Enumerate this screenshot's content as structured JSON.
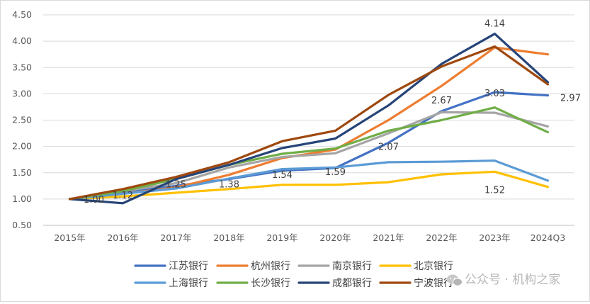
{
  "chart_data": {
    "type": "line",
    "title": "",
    "xlabel": "",
    "ylabel": "",
    "ylim": [
      0.5,
      4.5
    ],
    "yticks": [
      "0.50",
      "1.00",
      "1.50",
      "2.00",
      "2.50",
      "3.00",
      "3.50",
      "4.00",
      "4.50"
    ],
    "categories": [
      "2015年",
      "2016年",
      "2017年",
      "2018年",
      "2019年",
      "2020年",
      "2021年",
      "2022年",
      "2023年",
      "2024Q3"
    ],
    "grid": true,
    "legend": "bottom",
    "series": [
      {
        "name": "江苏银行",
        "color": "#4472C4",
        "values": [
          1.0,
          1.12,
          1.25,
          1.38,
          1.54,
          1.59,
          2.07,
          2.67,
          3.03,
          2.97
        ]
      },
      {
        "name": "杭州银行",
        "color": "#ED7D31",
        "values": [
          1.0,
          1.1,
          1.22,
          1.46,
          1.78,
          1.94,
          2.5,
          3.15,
          3.88,
          3.75
        ]
      },
      {
        "name": "南京银行",
        "color": "#A5A5A5",
        "values": [
          1.0,
          1.15,
          1.3,
          1.6,
          1.8,
          1.87,
          2.25,
          2.65,
          2.64,
          2.38
        ]
      },
      {
        "name": "北京银行",
        "color": "#FFC000",
        "values": [
          1.0,
          1.05,
          1.12,
          1.19,
          1.27,
          1.27,
          1.32,
          1.47,
          1.52,
          1.23
        ]
      },
      {
        "name": "上海银行",
        "color": "#5B9BD5",
        "values": [
          1.0,
          1.1,
          1.2,
          1.39,
          1.57,
          1.6,
          1.7,
          1.71,
          1.73,
          1.35
        ]
      },
      {
        "name": "长沙银行",
        "color": "#70AD47",
        "values": [
          1.0,
          1.15,
          1.38,
          1.65,
          1.86,
          1.96,
          2.3,
          2.5,
          2.74,
          2.27
        ]
      },
      {
        "name": "成都银行",
        "color": "#264478",
        "values": [
          1.0,
          0.92,
          1.38,
          1.65,
          1.97,
          2.15,
          2.78,
          3.57,
          4.14,
          3.22
        ]
      },
      {
        "name": "宁波银行",
        "color": "#9E480E",
        "values": [
          1.0,
          1.19,
          1.42,
          1.7,
          2.1,
          2.3,
          2.98,
          3.52,
          3.9,
          3.18
        ]
      }
    ],
    "data_labels": [
      {
        "series": 0,
        "index": 1,
        "text": "1.12"
      },
      {
        "series": 0,
        "index": 2,
        "text": "1.25"
      },
      {
        "series": 0,
        "index": 3,
        "text": "1.38"
      },
      {
        "series": 0,
        "index": 4,
        "text": "1.54"
      },
      {
        "series": 0,
        "index": 5,
        "text": "1.59"
      },
      {
        "series": 0,
        "index": 6,
        "text": "2.07"
      },
      {
        "series": 0,
        "index": 7,
        "text": "2.67"
      },
      {
        "series": 0,
        "index": 8,
        "text": "3.03"
      },
      {
        "series": 0,
        "index": 9,
        "text": "2.97"
      },
      {
        "series": 3,
        "index": 8,
        "text": "1.52"
      },
      {
        "series": 6,
        "index": 8,
        "text": "4.14"
      }
    ],
    "extra_labels": [
      {
        "text": "1.00"
      }
    ]
  },
  "watermark": {
    "text": "公众号 · 机构之家",
    "icon": "wechat-icon"
  }
}
